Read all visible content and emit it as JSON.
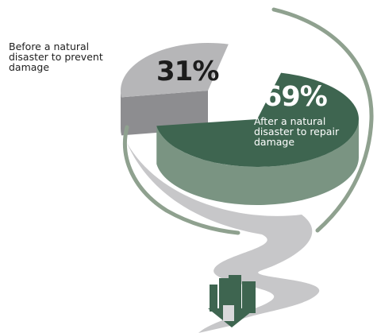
{
  "chart_data": {
    "type": "pie",
    "title": "",
    "slices": [
      {
        "label": "Before a natural disaster to prevent damage",
        "value": 31,
        "display": "31%"
      },
      {
        "label": "After a natural disaster to repair damage",
        "value": 69,
        "display": "69%"
      }
    ],
    "colors": {
      "before_top": "#b6b6b8",
      "before_side": "#8d8d90",
      "after_top": "#3e6550",
      "after_side": "#7a9482",
      "ring": "#8fa18f",
      "funnel": "#c7c7c9",
      "icon": "#3e6550"
    },
    "icon": "city-buildings-heart-icon"
  }
}
